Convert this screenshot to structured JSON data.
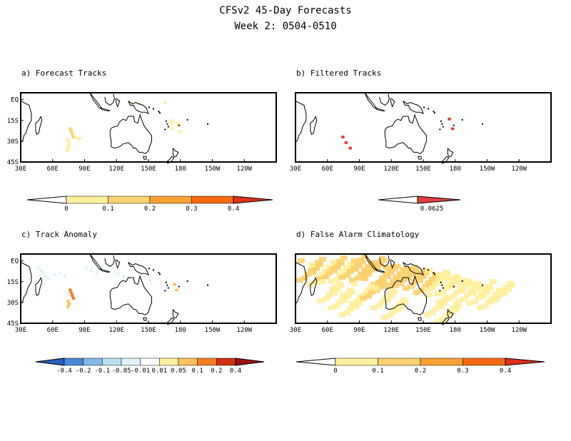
{
  "header": {
    "title": "CFSv2 45-Day Forecasts",
    "subtitle": "Week 2: 0504-0510"
  },
  "chart_data": [
    {
      "type": "heatmap",
      "title": "a) Forecast Tracks",
      "x_ticks": [
        "30E",
        "60E",
        "90E",
        "120E",
        "150E",
        "180",
        "150W",
        "120W"
      ],
      "y_ticks": [
        "EQ",
        "15S",
        "30S",
        "45S"
      ],
      "xlim": [
        30,
        270
      ],
      "ylim": [
        -45,
        5
      ],
      "colorbar": {
        "levels": [
          "0",
          "0.1",
          "0.2",
          "0.3",
          "0.4"
        ],
        "colors": [
          "#fff0a0",
          "#fdd070",
          "#f9a032",
          "#f36a10",
          "#e03018"
        ]
      },
      "cells": [
        [
          75,
          -20,
          0.12
        ],
        [
          76,
          -22,
          0.15
        ],
        [
          77,
          -24,
          0.15
        ],
        [
          78,
          -26,
          0.12
        ],
        [
          73,
          -28,
          0.1
        ],
        [
          74,
          -30,
          0.1
        ],
        [
          73,
          -32,
          0.08
        ],
        [
          73,
          -34,
          0.08
        ],
        [
          72,
          -36,
          0.08
        ],
        [
          80,
          -26,
          0.1
        ],
        [
          82,
          -27,
          0.1
        ],
        [
          84,
          -27,
          0.1
        ],
        [
          170,
          -14,
          0.1
        ],
        [
          171,
          -16,
          0.1
        ],
        [
          176,
          -16,
          0.08
        ],
        [
          177,
          -18,
          0.08
        ],
        [
          178,
          -22,
          0.06
        ],
        [
          171,
          -20,
          0.08
        ],
        [
          140,
          -2,
          0.08
        ],
        [
          164,
          -1,
          0.06
        ]
      ]
    },
    {
      "type": "heatmap",
      "title": "b) Filtered Tracks",
      "x_ticks": [
        "30E",
        "60E",
        "90E",
        "120E",
        "150E",
        "180",
        "150W",
        "120W"
      ],
      "y_ticks": [],
      "xlim": [
        30,
        270
      ],
      "ylim": [
        -45,
        5
      ],
      "colorbar": {
        "levels": [
          "0.0625"
        ],
        "colors": [
          "#e04040"
        ]
      },
      "cells": [
        [
          73,
          -26,
          0.07
        ],
        [
          76,
          -30,
          0.07
        ],
        [
          80,
          -34,
          0.07
        ],
        [
          176,
          -20,
          0.07
        ],
        [
          173,
          -13,
          0.07
        ]
      ]
    },
    {
      "type": "heatmap",
      "title": "c) Track Anomaly",
      "x_ticks": [
        "30E",
        "60E",
        "90E",
        "120E",
        "150E",
        "180",
        "150W",
        "120W"
      ],
      "y_ticks": [
        "EQ",
        "15S",
        "30S",
        "45S"
      ],
      "xlim": [
        30,
        270
      ],
      "ylim": [
        -45,
        5
      ],
      "colorbar": {
        "levels": [
          "-0.4",
          "-0.2",
          "-0.1",
          "-0.05",
          "-0.01",
          "0.01",
          "0.05",
          "0.1",
          "0.2",
          "0.4"
        ],
        "colors": [
          "#2860c0",
          "#4a88d8",
          "#80b8e8",
          "#b8e0f0",
          "#e0f4fa",
          "#ffffff",
          "#fdf0a0",
          "#fdc060",
          "#f08020",
          "#d03010",
          "#a01010"
        ]
      },
      "cells": [
        [
          75,
          -20,
          0.12
        ],
        [
          76,
          -22,
          0.15
        ],
        [
          77,
          -24,
          0.15
        ],
        [
          78,
          -26,
          0.12
        ],
        [
          73,
          -28,
          0.1
        ],
        [
          74,
          -30,
          0.1
        ],
        [
          73,
          -32,
          0.08
        ],
        [
          173,
          -16,
          0.08
        ],
        [
          175,
          -20,
          0.06
        ],
        [
          45,
          -4,
          -0.03
        ],
        [
          48,
          -6,
          -0.03
        ],
        [
          50,
          -8,
          -0.03
        ],
        [
          52,
          -10,
          -0.03
        ],
        [
          55,
          -12,
          -0.03
        ],
        [
          60,
          -9,
          -0.03
        ],
        [
          65,
          -8,
          -0.03
        ],
        [
          70,
          -10,
          -0.03
        ],
        [
          90,
          -4,
          -0.03
        ],
        [
          95,
          -6,
          -0.03
        ],
        [
          100,
          -8,
          -0.03
        ],
        [
          105,
          -3,
          -0.03
        ],
        [
          110,
          -6,
          -0.03
        ],
        [
          115,
          -4,
          -0.03
        ],
        [
          120,
          -8,
          -0.03
        ],
        [
          125,
          -10,
          -0.03
        ],
        [
          130,
          -12,
          -0.03
        ],
        [
          135,
          -14,
          -0.03
        ],
        [
          140,
          -12,
          -0.03
        ],
        [
          145,
          -11,
          -0.03
        ],
        [
          150,
          -13,
          -0.03
        ]
      ]
    },
    {
      "type": "heatmap",
      "title": "d) False Alarm Climatology",
      "x_ticks": [
        "30E",
        "60E",
        "90E",
        "120E",
        "150E",
        "180",
        "150W",
        "120W"
      ],
      "y_ticks": [],
      "xlim": [
        30,
        270
      ],
      "ylim": [
        -45,
        5
      ],
      "colorbar": {
        "levels": [
          "0",
          "0.1",
          "0.2",
          "0.3",
          "0.4"
        ],
        "colors": [
          "#fff0a0",
          "#fdd070",
          "#f9a032",
          "#f36a10",
          "#e03018"
        ]
      },
      "cells": [
        [
          40,
          -5,
          0.12
        ],
        [
          50,
          -8,
          0.1
        ],
        [
          60,
          -4,
          0.12
        ],
        [
          70,
          -6,
          0.1
        ],
        [
          80,
          -3,
          0.12
        ],
        [
          90,
          -5,
          0.15
        ],
        [
          100,
          -2,
          0.12
        ],
        [
          110,
          -8,
          0.15
        ],
        [
          120,
          -10,
          0.18
        ],
        [
          130,
          -9,
          0.2
        ],
        [
          140,
          -11,
          0.15
        ],
        [
          150,
          -14,
          0.12
        ],
        [
          160,
          -12,
          0.1
        ],
        [
          170,
          -15,
          0.08
        ],
        [
          180,
          -18,
          0.08
        ],
        [
          190,
          -20,
          0.06
        ],
        [
          200,
          -22,
          0.06
        ],
        [
          210,
          -25,
          0.06
        ],
        [
          220,
          -20,
          0.05
        ],
        [
          60,
          -20,
          0.08
        ],
        [
          70,
          -25,
          0.08
        ],
        [
          80,
          -30,
          0.06
        ],
        [
          90,
          -22,
          0.1
        ],
        [
          100,
          -18,
          0.12
        ],
        [
          110,
          -25,
          0.08
        ],
        [
          120,
          -32,
          0.06
        ],
        [
          160,
          -30,
          0.06
        ],
        [
          170,
          -35,
          0.05
        ]
      ]
    }
  ]
}
